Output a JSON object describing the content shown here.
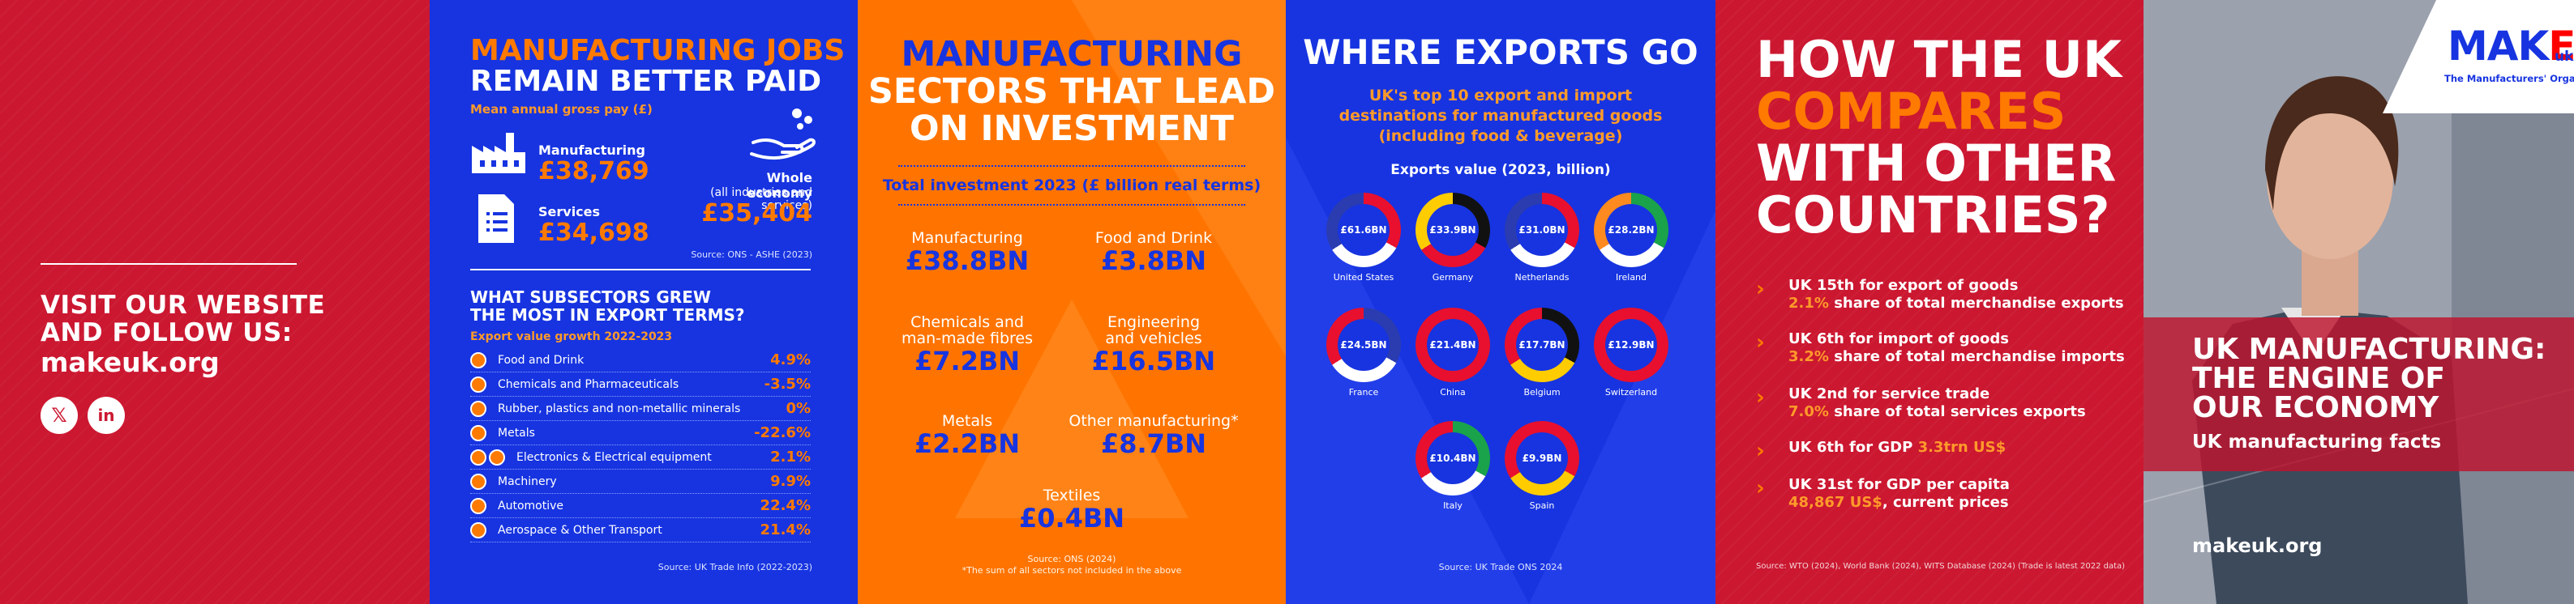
{
  "panel1": {
    "visit_line1": "VISIT OUR WEBSITE",
    "visit_line2": "AND FOLLOW US:",
    "website": "makeuk.org",
    "social": [
      {
        "icon": "x-icon",
        "glyph": "𝕏"
      },
      {
        "icon": "linkedin-icon",
        "glyph": "in"
      }
    ]
  },
  "panel2": {
    "title_line1": "MANUFACTURING JOBS",
    "title_line2": "REMAIN BETTER PAID",
    "subtitle": "Mean annual gross pay (£)",
    "pay": {
      "manufacturing": {
        "label": "Manufacturing",
        "value": "£38,769"
      },
      "services": {
        "label": "Services",
        "value": "£34,698"
      },
      "whole": {
        "label": "Whole economy",
        "note": "(all industries and services)",
        "value": "£35,404"
      }
    },
    "pay_source": "Source: ONS - ASHE (2023)",
    "export_title_line1": "WHAT SUBSECTORS GREW",
    "export_title_line2": "THE MOST IN EXPORT TERMS?",
    "export_subtitle": "Export value growth 2022-2023",
    "sectors": [
      {
        "name": "Food and Drink",
        "value": "4.9%"
      },
      {
        "name": "Chemicals and Pharmaceuticals",
        "value": "-3.5%"
      },
      {
        "name": "Rubber, plastics and non-metallic minerals",
        "value": "0%"
      },
      {
        "name": "Metals",
        "value": "-22.6%"
      },
      {
        "name": "Electronics & Electrical equipment",
        "value": "2.1%"
      },
      {
        "name": "Machinery",
        "value": "9.9%"
      },
      {
        "name": "Automotive",
        "value": "22.4%"
      },
      {
        "name": "Aerospace & Other Transport",
        "value": "21.4%"
      }
    ],
    "export_source": "Source: UK Trade Info (2022-2023)"
  },
  "panel3": {
    "title_line1": "MANUFACTURING",
    "title_line2": "SECTORS THAT LEAD",
    "title_line3": "ON INVESTMENT",
    "total_label": "Total investment 2023 (£ billion real terms)",
    "items": [
      {
        "name_line1": "Manufacturing",
        "name_line2": "",
        "value": "£38.8BN"
      },
      {
        "name_line1": "Food and Drink",
        "name_line2": "",
        "value": "£3.8BN"
      },
      {
        "name_line1": "Chemicals and",
        "name_line2": "man-made fibres",
        "value": "£7.2BN"
      },
      {
        "name_line1": "Engineering",
        "name_line2": "and vehicles",
        "value": "£16.5BN"
      },
      {
        "name_line1": "Metals",
        "name_line2": "",
        "value": "£2.2BN"
      },
      {
        "name_line1": "Other manufacturing*",
        "name_line2": "",
        "value": "£8.7BN"
      },
      {
        "name_line1": "Textiles",
        "name_line2": "",
        "value": "£0.4BN"
      }
    ],
    "source_line1": "Source: ONS (2024)",
    "source_line2": "*The sum of all sectors not included in the above"
  },
  "panel4": {
    "title": "WHERE EXPORTS GO",
    "subtitle_line1": "UK's top 10 export and import",
    "subtitle_line2": "destinations for manufactured goods",
    "subtitle_line3": "(including food & beverage)",
    "chart_label": "Exports value (2023, billion)",
    "countries": [
      {
        "name": "United States",
        "value": "£61.6BN",
        "colors": [
          "#e8102e",
          "#ffffff",
          "#2a3cb0"
        ]
      },
      {
        "name": "Germany",
        "value": "£33.9BN",
        "colors": [
          "#111111",
          "#e8102e",
          "#ffcc00"
        ]
      },
      {
        "name": "Netherlands",
        "value": "£31.0BN",
        "colors": [
          "#e8102e",
          "#ffffff",
          "#2a3cb0"
        ]
      },
      {
        "name": "Ireland",
        "value": "£28.2BN",
        "colors": [
          "#1aa34a",
          "#ffffff",
          "#ff8a1f"
        ]
      },
      {
        "name": "France",
        "value": "£24.5BN",
        "colors": [
          "#2a3cb0",
          "#ffffff",
          "#e8102e"
        ]
      },
      {
        "name": "China",
        "value": "£21.4BN",
        "colors": [
          "#e8102e",
          "#e8102e",
          "#e8102e"
        ]
      },
      {
        "name": "Belgium",
        "value": "£17.7BN",
        "colors": [
          "#111111",
          "#ffcc00",
          "#e8102e"
        ]
      },
      {
        "name": "Switzerland",
        "value": "£12.9BN",
        "colors": [
          "#e8102e",
          "#e8102e",
          "#e8102e"
        ]
      },
      {
        "name": "Italy",
        "value": "£10.4BN",
        "colors": [
          "#1aa34a",
          "#ffffff",
          "#e8102e"
        ]
      },
      {
        "name": "Spain",
        "value": "£9.9BN",
        "colors": [
          "#e8102e",
          "#ffcc00",
          "#e8102e"
        ]
      }
    ],
    "source": "Source: UK Trade ONS 2024"
  },
  "panel5": {
    "title_line1": "HOW THE UK",
    "title_line2": "COMPARES",
    "title_line3": "WITH OTHER",
    "title_line4": "COUNTRIES?",
    "facts": [
      {
        "line1": "UK 15th for export of goods",
        "highlight": "2.1%",
        "line2_rest": " share of total merchandise exports"
      },
      {
        "line1": "UK 6th for import of goods",
        "highlight": "3.2%",
        "line2_rest": " share of total merchandise imports"
      },
      {
        "line1": "UK 2nd for service trade",
        "highlight": "7.0%",
        "line2_rest": " share of total services exports"
      },
      {
        "line1": "UK 6th for GDP ",
        "line1_highlight": "3.3trn US$"
      },
      {
        "line1": "UK 31st for GDP per capita",
        "highlight": "48,867 US$",
        "line2_rest": ", current prices"
      }
    ],
    "source": "Source: WTO (2024), World Bank (2024), WITS Database (2024) (Trade is latest 2022 data)"
  },
  "panel6": {
    "logo_text_main": "MAK",
    "logo_text_e": "E",
    "logo_uk": "uk",
    "logo_tagline": "The Manufacturers' Organisation",
    "cover_title_line1": "UK MANUFACTURING:",
    "cover_title_line2": "THE ENGINE OF",
    "cover_title_line3": "OUR ECONOMY",
    "cover_subtitle": "UK manufacturing facts",
    "website": "makeuk.org"
  },
  "colors": {
    "red": "#cb1730",
    "blue": "#1734e0",
    "orange": "#ff7400",
    "white": "#ffffff"
  }
}
